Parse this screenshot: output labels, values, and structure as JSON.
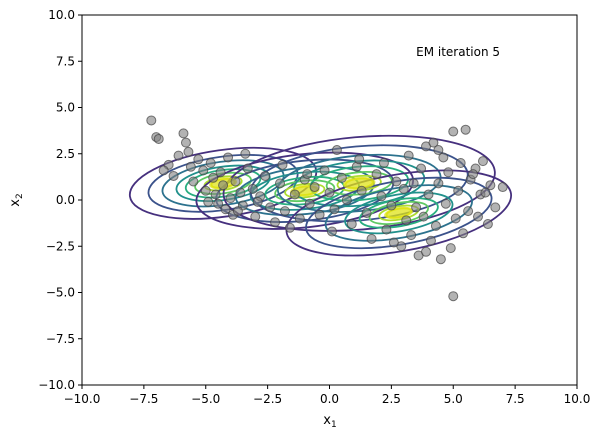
{
  "chart_data": {
    "type": "scatter",
    "title": "",
    "annotation": "EM iteration 5",
    "xlabel": {
      "base": "x",
      "sub": "1"
    },
    "ylabel": {
      "base": "x",
      "sub": "2"
    },
    "xlim": [
      -10,
      10
    ],
    "ylim": [
      -10,
      10
    ],
    "x_ticks": [
      -10,
      -7.5,
      -5,
      -2.5,
      0,
      2.5,
      5,
      7.5,
      10
    ],
    "x_tick_labels": [
      "−10.0",
      "−7.5",
      "−5.0",
      "−2.5",
      "0.0",
      "2.5",
      "5.0",
      "7.5",
      "10.0"
    ],
    "y_ticks": [
      -10,
      -7.5,
      -5,
      -2.5,
      0,
      2.5,
      5,
      7.5,
      10
    ],
    "y_tick_labels": [
      "−10.0",
      "−7.5",
      "−5.0",
      "−2.5",
      "0.0",
      "2.5",
      "5.0",
      "7.5",
      "10.0"
    ],
    "grid": false,
    "point_color": "#808080",
    "point_edge_color": "#404040",
    "contour_colors": [
      "#46307e",
      "#3b528b",
      "#2c728e",
      "#21918c",
      "#28ae80",
      "#5ec962",
      "#addc30",
      "#dfe318"
    ],
    "points": [
      [
        -7.2,
        4.3
      ],
      [
        -7.0,
        3.4
      ],
      [
        -6.9,
        3.3
      ],
      [
        -6.5,
        1.9
      ],
      [
        -6.3,
        1.3
      ],
      [
        -6.1,
        2.4
      ],
      [
        -5.9,
        3.6
      ],
      [
        -5.8,
        3.1
      ],
      [
        -5.7,
        2.6
      ],
      [
        -5.6,
        1.8
      ],
      [
        -5.5,
        1.0
      ],
      [
        -5.3,
        2.2
      ],
      [
        -5.1,
        1.6
      ],
      [
        -5.0,
        0.5
      ],
      [
        -4.8,
        2.0
      ],
      [
        -4.7,
        1.2
      ],
      [
        -4.6,
        0.3
      ],
      [
        -4.5,
        -0.2
      ],
      [
        -4.4,
        1.5
      ],
      [
        -4.3,
        0.8
      ],
      [
        -4.2,
        -0.5
      ],
      [
        -4.1,
        2.3
      ],
      [
        -4.0,
        0.1
      ],
      [
        -3.9,
        -0.8
      ],
      [
        -3.8,
        1.0
      ],
      [
        -3.6,
        0.4
      ],
      [
        -3.5,
        -0.3
      ],
      [
        -3.3,
        1.7
      ],
      [
        -3.1,
        0.6
      ],
      [
        -3.0,
        -0.9
      ],
      [
        -2.8,
        0.2
      ],
      [
        -2.6,
        1.3
      ],
      [
        -2.4,
        -0.4
      ],
      [
        -2.2,
        -1.2
      ],
      [
        -2.0,
        0.9
      ],
      [
        -1.8,
        -0.6
      ],
      [
        -1.6,
        -1.5
      ],
      [
        -1.4,
        0.3
      ],
      [
        -1.2,
        -1.0
      ],
      [
        -1.0,
        1.1
      ],
      [
        -0.8,
        -0.2
      ],
      [
        -0.6,
        0.7
      ],
      [
        -0.4,
        -0.8
      ],
      [
        -0.2,
        1.6
      ],
      [
        0.0,
        0.4
      ],
      [
        0.2,
        -0.5
      ],
      [
        0.3,
        2.7
      ],
      [
        0.5,
        1.2
      ],
      [
        0.7,
        0.0
      ],
      [
        0.9,
        -1.3
      ],
      [
        1.1,
        1.8
      ],
      [
        1.3,
        0.5
      ],
      [
        1.5,
        -0.7
      ],
      [
        1.7,
        -2.1
      ],
      [
        1.9,
        1.4
      ],
      [
        2.1,
        0.2
      ],
      [
        2.3,
        -1.6
      ],
      [
        2.5,
        -0.3
      ],
      [
        2.7,
        1.0
      ],
      [
        2.9,
        -2.5
      ],
      [
        3.0,
        0.6
      ],
      [
        3.1,
        -1.1
      ],
      [
        3.2,
        2.4
      ],
      [
        3.3,
        -1.9
      ],
      [
        3.5,
        -0.4
      ],
      [
        3.6,
        -3.0
      ],
      [
        3.7,
        1.7
      ],
      [
        3.8,
        -0.9
      ],
      [
        3.9,
        2.9
      ],
      [
        4.0,
        0.3
      ],
      [
        4.1,
        -2.2
      ],
      [
        4.2,
        3.1
      ],
      [
        4.3,
        -1.4
      ],
      [
        4.4,
        0.9
      ],
      [
        4.5,
        -3.2
      ],
      [
        4.6,
        2.3
      ],
      [
        4.7,
        -0.2
      ],
      [
        4.8,
        1.5
      ],
      [
        4.9,
        -2.6
      ],
      [
        5.0,
        3.7
      ],
      [
        5.0,
        -5.2
      ],
      [
        5.1,
        -1.0
      ],
      [
        5.2,
        0.5
      ],
      [
        5.3,
        2.0
      ],
      [
        5.4,
        -1.8
      ],
      [
        5.5,
        3.8
      ],
      [
        5.6,
        -0.6
      ],
      [
        5.7,
        1.1
      ],
      [
        5.9,
        1.7
      ],
      [
        6.0,
        -0.9
      ],
      [
        6.1,
        0.3
      ],
      [
        6.2,
        2.1
      ],
      [
        6.4,
        -1.3
      ],
      [
        6.5,
        0.8
      ],
      [
        6.7,
        -0.4
      ],
      [
        7.0,
        0.7
      ],
      [
        -6.7,
        1.6
      ],
      [
        -3.4,
        2.5
      ],
      [
        -2.9,
        -0.1
      ],
      [
        -1.9,
        1.9
      ],
      [
        -0.9,
        1.4
      ],
      [
        0.1,
        -1.7
      ],
      [
        1.2,
        2.2
      ],
      [
        2.2,
        2.0
      ],
      [
        3.4,
        0.9
      ],
      [
        4.4,
        2.7
      ],
      [
        5.8,
        1.4
      ],
      [
        6.3,
        0.4
      ],
      [
        -4.9,
        -0.1
      ],
      [
        -3.7,
        -0.6
      ],
      [
        2.6,
        -2.3
      ],
      [
        3.9,
        -2.8
      ]
    ],
    "components": [
      {
        "mean": [
          -4.3,
          0.9
        ],
        "sd": [
          1.9,
          0.9
        ],
        "rotation": -8,
        "scales": [
          2.0,
          1.6,
          1.3,
          1.0,
          0.8,
          0.6,
          0.4,
          0.25
        ]
      },
      {
        "mean": [
          -1.0,
          0.5
        ],
        "sd": [
          2.0,
          0.9
        ],
        "rotation": -6,
        "scales": [
          2.2,
          1.8,
          1.4,
          1.1,
          0.8,
          0.6,
          0.4,
          0.25
        ]
      },
      {
        "mean": [
          1.2,
          0.9
        ],
        "sd": [
          2.2,
          1.0
        ],
        "rotation": -5,
        "scales": [
          2.5,
          2.0,
          1.5,
          1.2,
          0.9,
          0.6,
          0.4,
          0.25
        ]
      },
      {
        "mean": [
          2.8,
          -0.7
        ],
        "sd": [
          2.0,
          0.9
        ],
        "rotation": -10,
        "scales": [
          2.3,
          1.9,
          1.5,
          1.1,
          0.8,
          0.6,
          0.4,
          0.25
        ]
      }
    ]
  }
}
